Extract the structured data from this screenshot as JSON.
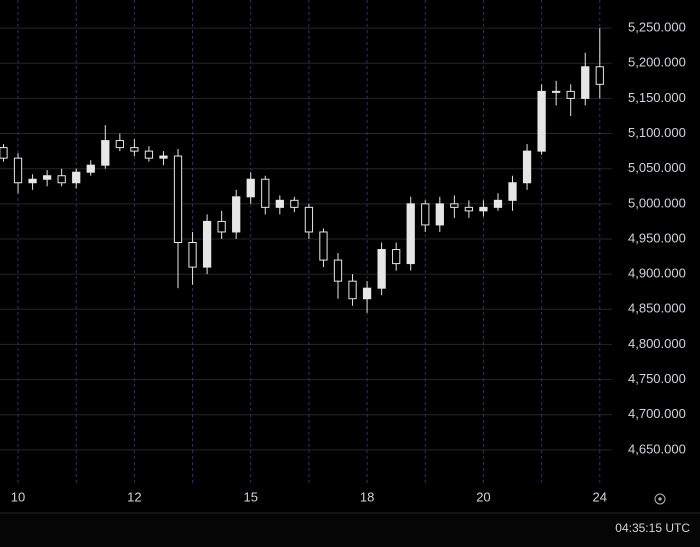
{
  "chart_data": {
    "type": "candlestick",
    "color": "#e6e6e6",
    "grid": true,
    "xlim": [
      -0.31,
      10.21
    ],
    "xticks": [
      {
        "value": 0,
        "label": "10"
      },
      {
        "value": 1,
        "label": null
      },
      {
        "value": 2,
        "label": "12"
      },
      {
        "value": 3,
        "label": null
      },
      {
        "value": 4,
        "label": "15"
      },
      {
        "value": 5,
        "label": null
      },
      {
        "value": 6,
        "label": "18"
      },
      {
        "value": 7,
        "label": null
      },
      {
        "value": 8,
        "label": "20"
      },
      {
        "value": 9,
        "label": null
      },
      {
        "value": 10,
        "label": "24"
      }
    ],
    "ylim": [
      4600,
      5290
    ],
    "yticks": [
      {
        "value": 4650,
        "label": "4,650.000"
      },
      {
        "value": 4700,
        "label": "4,700.000"
      },
      {
        "value": 4750,
        "label": "4,750.000"
      },
      {
        "value": 4800,
        "label": "4,800.000"
      },
      {
        "value": 4850,
        "label": "4,850.000"
      },
      {
        "value": 4900,
        "label": "4,900.000"
      },
      {
        "value": 4950,
        "label": "4,950.000"
      },
      {
        "value": 5000,
        "label": "5,000.000"
      },
      {
        "value": 5050,
        "label": "5,050.000"
      },
      {
        "value": 5100,
        "label": "5,100.000"
      },
      {
        "value": 5150,
        "label": "5,150.000"
      },
      {
        "value": 5200,
        "label": "5,200.000"
      },
      {
        "value": 5250,
        "label": "5,250.000"
      }
    ],
    "x": [
      -0.25,
      0,
      0.25,
      0.5,
      0.75,
      1,
      1.25,
      1.5,
      1.75,
      2,
      2.25,
      2.5,
      2.75,
      3,
      3.25,
      3.5,
      3.75,
      4,
      4.25,
      4.5,
      4.75,
      5,
      5.25,
      5.5,
      5.75,
      6,
      6.25,
      6.5,
      6.75,
      7,
      7.25,
      7.5,
      7.75,
      8,
      8.25,
      8.5,
      8.75,
      9,
      9.25,
      9.5,
      9.75,
      10
    ],
    "open": [
      5080,
      5065,
      5030,
      5035,
      5040,
      5030,
      5045,
      5055,
      5090,
      5080,
      5075,
      5065,
      5068,
      4945,
      4910,
      4975,
      4960,
      5010,
      5035,
      4995,
      5005,
      4995,
      4960,
      4920,
      4890,
      4865,
      4880,
      4935,
      4915,
      5000,
      4970,
      5000,
      4995,
      4990,
      4995,
      5005,
      5030,
      5075,
      5160,
      5160,
      5150,
      5195
    ],
    "high": [
      5085,
      5072,
      5042,
      5048,
      5050,
      5050,
      5062,
      5112,
      5100,
      5092,
      5082,
      5075,
      5078,
      4960,
      4985,
      4990,
      5020,
      5045,
      5040,
      5012,
      5010,
      5000,
      4965,
      4930,
      4900,
      4890,
      4945,
      4945,
      5010,
      5005,
      5010,
      5012,
      5005,
      5005,
      5015,
      5040,
      5085,
      5170,
      5175,
      5170,
      5215,
      5250
    ],
    "low": [
      5060,
      5015,
      5020,
      5025,
      5025,
      5022,
      5040,
      5050,
      5075,
      5068,
      5060,
      5055,
      4880,
      4885,
      4900,
      4950,
      4950,
      5000,
      4985,
      4985,
      4988,
      4950,
      4910,
      4865,
      4855,
      4845,
      4870,
      4905,
      4905,
      4960,
      4960,
      4980,
      4980,
      4982,
      4990,
      4990,
      5020,
      5070,
      5140,
      5125,
      5140,
      5150
    ],
    "close": [
      5065,
      5030,
      5035,
      5040,
      5030,
      5045,
      5055,
      5090,
      5080,
      5075,
      5065,
      5068,
      4945,
      4910,
      4975,
      4960,
      5010,
      5035,
      4995,
      5005,
      4995,
      4960,
      4920,
      4890,
      4865,
      4880,
      4935,
      4915,
      5000,
      4970,
      5000,
      4995,
      4990,
      4995,
      5005,
      5030,
      5075,
      5160,
      5160,
      5150,
      5195,
      5170
    ]
  },
  "status_bar": {
    "time": "04:35:15 UTC"
  }
}
